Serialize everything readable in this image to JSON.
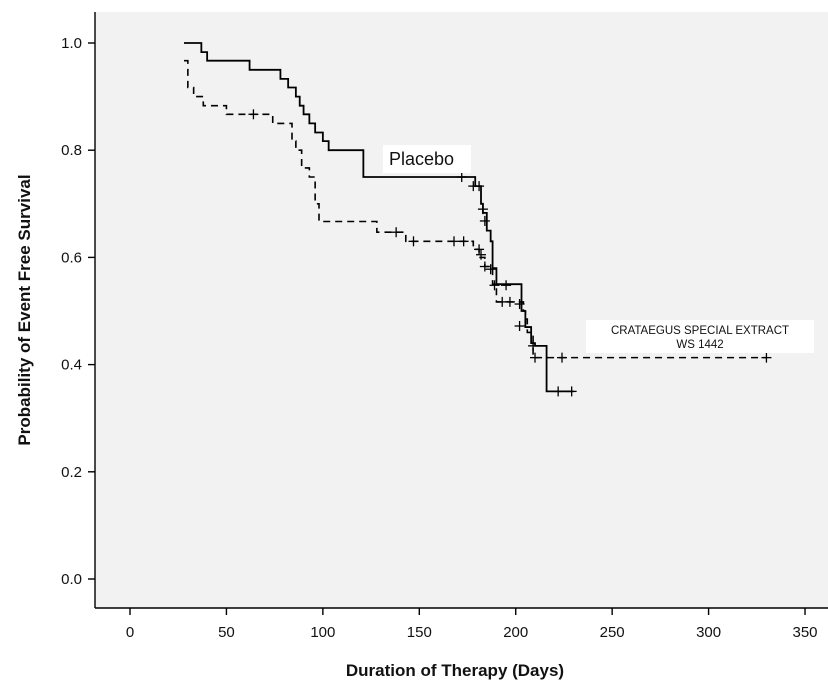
{
  "chart_data": {
    "type": "line",
    "xlabel": "Duration of Therapy (Days)",
    "ylabel": "Probability of Event Free Survival",
    "xlim": [
      -20,
      360
    ],
    "ylim": [
      -0.05,
      1.05
    ],
    "xticks": [
      0,
      50,
      100,
      150,
      200,
      250,
      300,
      350
    ],
    "yticks": [
      0.0,
      0.2,
      0.4,
      0.6,
      0.8,
      1.0
    ],
    "xtick_labels": [
      "0",
      "50",
      "100",
      "150",
      "200",
      "250",
      "300",
      "350"
    ],
    "ytick_labels": [
      "0.0",
      "0.2",
      "0.4",
      "0.6",
      "0.8",
      "1.0"
    ],
    "grid": false,
    "legend": "none",
    "series": [
      {
        "name": "Placebo",
        "style": "solid",
        "steps": [
          [
            28,
            1.0
          ],
          [
            37,
            0.983
          ],
          [
            40,
            0.967
          ],
          [
            62,
            0.95
          ],
          [
            78,
            0.933
          ],
          [
            82,
            0.917
          ],
          [
            86,
            0.9
          ],
          [
            88,
            0.883
          ],
          [
            90,
            0.867
          ],
          [
            93,
            0.85
          ],
          [
            96,
            0.833
          ],
          [
            100,
            0.817
          ],
          [
            103,
            0.8
          ],
          [
            121,
            0.75
          ],
          [
            173,
            0.75
          ],
          [
            179,
            0.733
          ],
          [
            182,
            0.7
          ],
          [
            183,
            0.683
          ],
          [
            185,
            0.65
          ],
          [
            187,
            0.63
          ],
          [
            188,
            0.58
          ],
          [
            190,
            0.55
          ],
          [
            203,
            0.5
          ],
          [
            205,
            0.47
          ],
          [
            208,
            0.44
          ],
          [
            210,
            0.435
          ],
          [
            216,
            0.35
          ],
          [
            230,
            0.35
          ]
        ],
        "censored": [
          [
            172,
            0.75
          ],
          [
            178,
            0.733
          ],
          [
            181,
            0.733
          ],
          [
            183,
            0.69
          ],
          [
            184,
            0.668
          ],
          [
            187,
            0.578
          ],
          [
            189,
            0.548
          ],
          [
            195,
            0.548
          ],
          [
            202,
            0.513
          ],
          [
            209,
            0.435
          ],
          [
            222,
            0.35
          ],
          [
            229,
            0.35
          ]
        ]
      },
      {
        "name": "CRATAEGUS SPECIAL EXTRACT WS 1442",
        "style": "dashed",
        "steps": [
          [
            28,
            0.967
          ],
          [
            30,
            0.917
          ],
          [
            33,
            0.9
          ],
          [
            38,
            0.883
          ],
          [
            50,
            0.867
          ],
          [
            74,
            0.85
          ],
          [
            84,
            0.817
          ],
          [
            86,
            0.8
          ],
          [
            89,
            0.767
          ],
          [
            93,
            0.75
          ],
          [
            96,
            0.7
          ],
          [
            98,
            0.667
          ],
          [
            128,
            0.647
          ],
          [
            143,
            0.63
          ],
          [
            178,
            0.615
          ],
          [
            181,
            0.6
          ],
          [
            184,
            0.583
          ],
          [
            188,
            0.55
          ],
          [
            190,
            0.517
          ],
          [
            200,
            0.517
          ],
          [
            204,
            0.5
          ],
          [
            205,
            0.485
          ],
          [
            206,
            0.46
          ],
          [
            209,
            0.413
          ],
          [
            330,
            0.413
          ]
        ],
        "censored": [
          [
            64,
            0.867
          ],
          [
            138,
            0.647
          ],
          [
            147,
            0.63
          ],
          [
            168,
            0.63
          ],
          [
            173,
            0.63
          ],
          [
            181,
            0.615
          ],
          [
            182,
            0.605
          ],
          [
            184,
            0.583
          ],
          [
            193,
            0.517
          ],
          [
            197,
            0.517
          ],
          [
            202,
            0.472
          ],
          [
            210,
            0.413
          ],
          [
            224,
            0.413
          ],
          [
            330,
            0.413
          ]
        ]
      }
    ],
    "annotations": [
      {
        "text": "Placebo",
        "at": [
          133,
          0.78
        ]
      },
      {
        "lines": [
          "CRATAEGUS SPECIAL EXTRACT",
          "WS 1442"
        ],
        "at": [
          285,
          0.44
        ]
      }
    ]
  }
}
